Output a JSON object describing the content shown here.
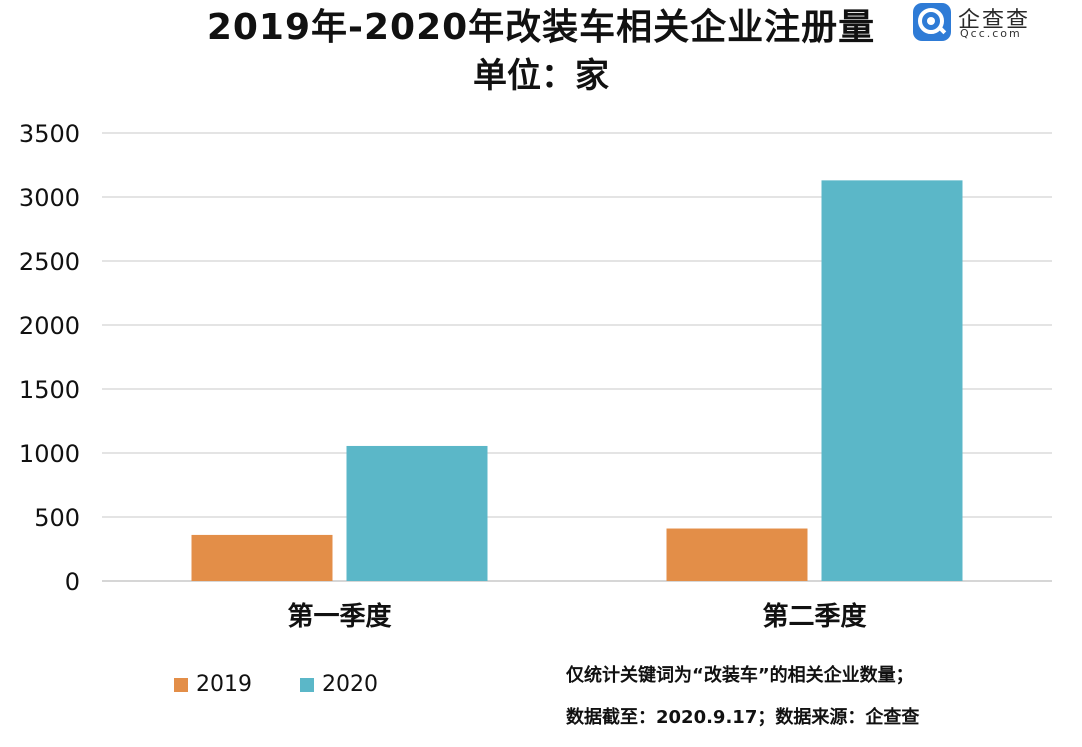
{
  "title": "2019年-2020年改装车相关企业注册量",
  "subtitle": "单位：家",
  "logo": {
    "name": "企查查",
    "domain": "Qcc.com",
    "icon": "qcc-logo-icon",
    "color": "#2e7bd6"
  },
  "notes": [
    "仅统计关键词为“改装车”的相关企业数量；",
    "数据截至：2020.9.17；数据来源：企查查"
  ],
  "chart_data": {
    "type": "bar",
    "categories": [
      "第一季度",
      "第二季度"
    ],
    "series": [
      {
        "name": "2019",
        "values": [
          360,
          410
        ],
        "color": "#e38e48"
      },
      {
        "name": "2020",
        "values": [
          1055,
          3130
        ],
        "color": "#5bb7c8"
      }
    ],
    "ylim": [
      0,
      3500
    ],
    "yticks": [
      "0",
      "500",
      "1000",
      "1500",
      "2000",
      "2500",
      "3000",
      "3500"
    ],
    "grid": true,
    "legend_position": "bottom-left"
  }
}
